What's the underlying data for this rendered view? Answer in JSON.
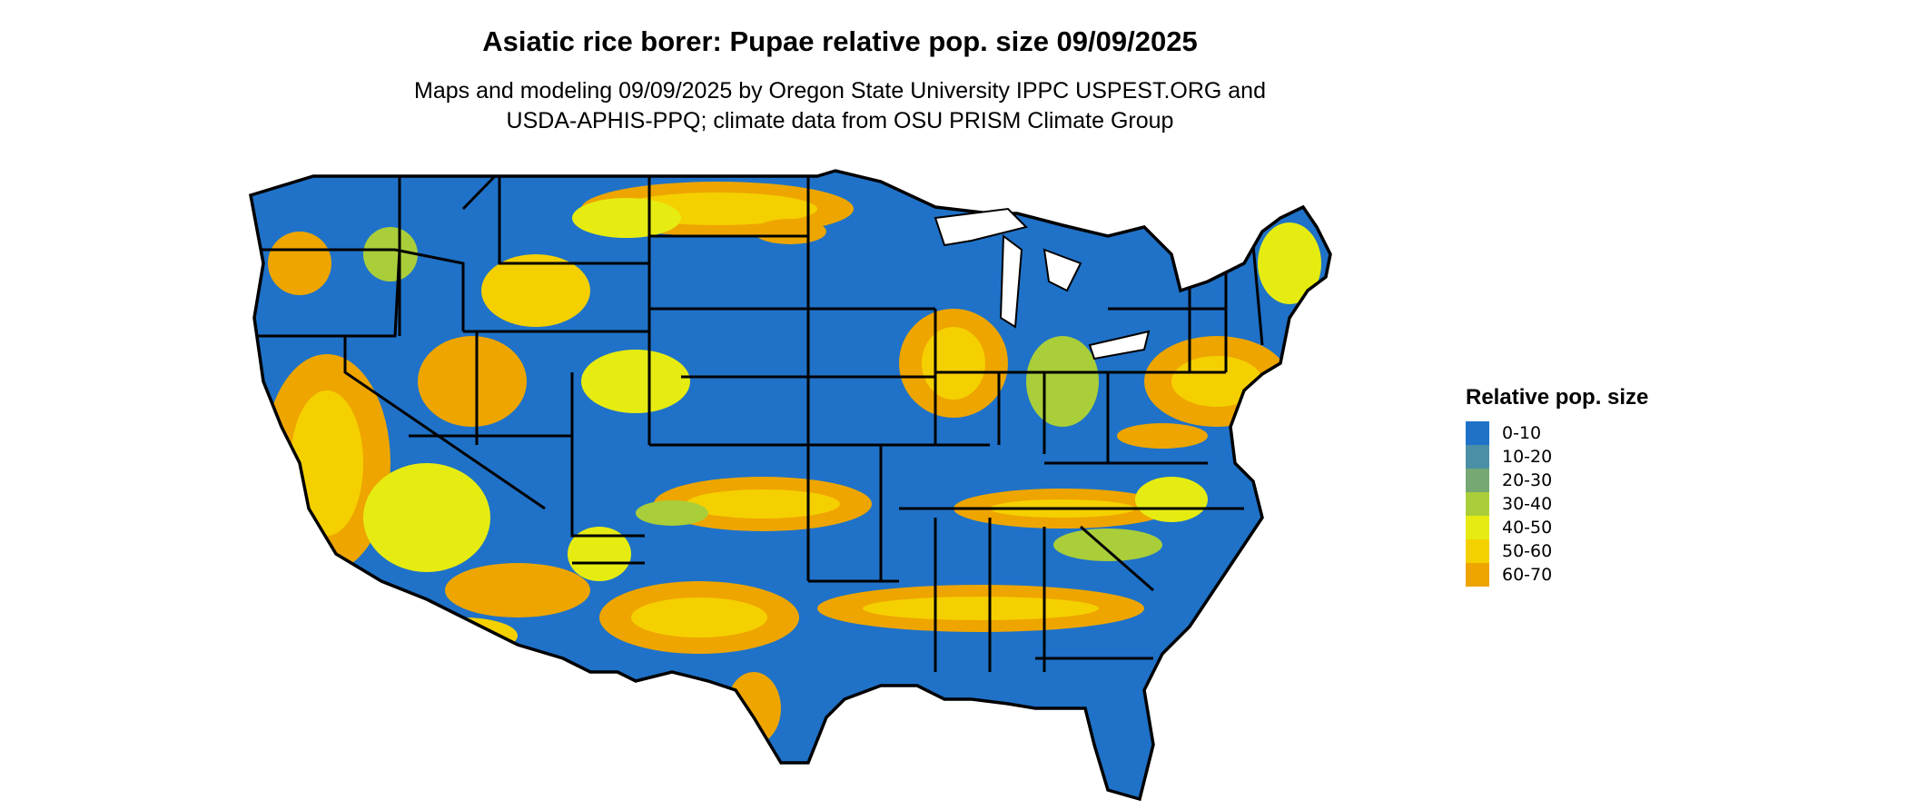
{
  "header": {
    "title": "Asiatic rice borer: Pupae relative pop. size 09/09/2025",
    "subtitle_line1": "Maps and modeling 09/09/2025 by Oregon State University IPPC USPEST.ORG and",
    "subtitle_line2": "USDA-APHIS-PPQ; climate data from OSU PRISM Climate Group"
  },
  "legend": {
    "title": "Relative pop. size",
    "items": [
      {
        "label": "0-10",
        "color": "#1f72c8"
      },
      {
        "label": "10-20",
        "color": "#4a8fa6"
      },
      {
        "label": "20-30",
        "color": "#75a872"
      },
      {
        "label": "30-40",
        "color": "#aace3a"
      },
      {
        "label": "40-50",
        "color": "#e6ec12"
      },
      {
        "label": "50-60",
        "color": "#f5d000"
      },
      {
        "label": "60-70",
        "color": "#eea500"
      }
    ]
  },
  "map": {
    "region": "contiguous United States",
    "base_color": "#1f72c8",
    "border_color": "#000000"
  }
}
